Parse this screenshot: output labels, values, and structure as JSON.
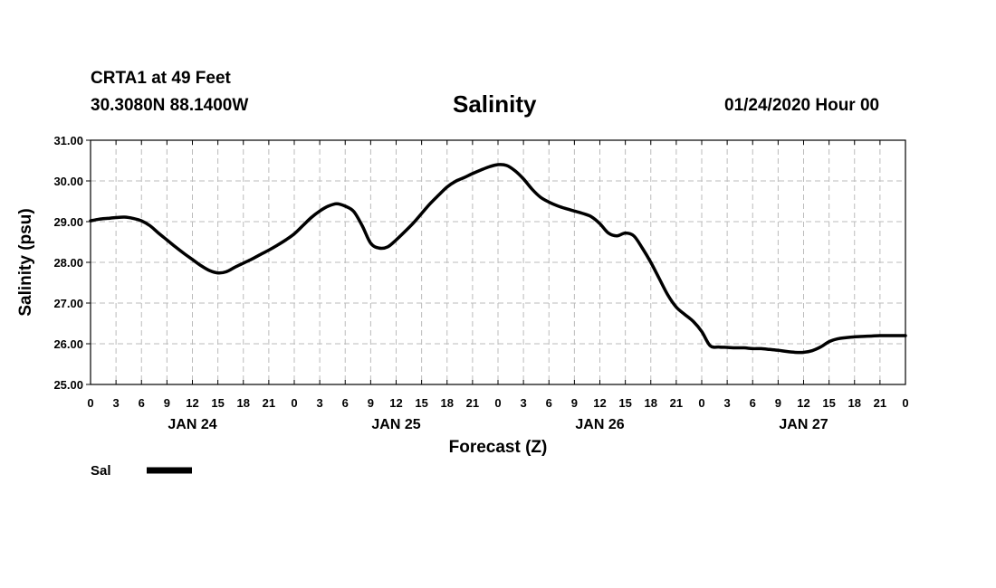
{
  "header": {
    "station": "CRTA1 at 49 Feet",
    "coords": "30.3080N 88.1400W",
    "datetime": "01/24/2020 Hour 00"
  },
  "colors": {
    "line": "#000000",
    "grid": "#bbbbbb",
    "frame": "#000000"
  },
  "chart_data": {
    "type": "line",
    "title": "Salinity",
    "xlabel": "Forecast (Z)",
    "ylabel": "Salinity (psu)",
    "xlim": [
      0,
      96
    ],
    "ylim": [
      25,
      31
    ],
    "x_unit": "forecast hours",
    "x_tick_step": 3,
    "x_tick_labels": [
      "0",
      "3",
      "6",
      "9",
      "12",
      "15",
      "18",
      "21",
      "0",
      "3",
      "6",
      "9",
      "12",
      "15",
      "18",
      "21",
      "0",
      "3",
      "6",
      "9",
      "12",
      "15",
      "18",
      "21",
      "0",
      "3",
      "6",
      "9",
      "12",
      "15",
      "18",
      "21",
      "0"
    ],
    "y_ticks": [
      25,
      26,
      27,
      28,
      29,
      30,
      31
    ],
    "y_tick_labels": [
      "25.00",
      "26.00",
      "27.00",
      "28.00",
      "29.00",
      "30.00",
      "31.00"
    ],
    "day_labels": [
      {
        "hour": 12,
        "label": "JAN 24"
      },
      {
        "hour": 36,
        "label": "JAN 25"
      },
      {
        "hour": 60,
        "label": "JAN 26"
      },
      {
        "hour": 84,
        "label": "JAN 27"
      }
    ],
    "grid": true,
    "legend_position": "bottom-left",
    "series": [
      {
        "name": "Sal",
        "x": [
          0,
          1,
          2,
          3,
          4,
          5,
          6,
          7,
          8,
          9,
          10,
          11,
          12,
          13,
          14,
          15,
          16,
          17,
          18,
          19,
          20,
          21,
          22,
          23,
          24,
          25,
          26,
          27,
          28,
          29,
          30,
          31,
          32,
          33,
          34,
          35,
          36,
          37,
          38,
          39,
          40,
          41,
          42,
          43,
          44,
          45,
          46,
          47,
          48,
          49,
          50,
          51,
          52,
          53,
          54,
          55,
          56,
          57,
          58,
          59,
          60,
          61,
          62,
          63,
          64,
          65,
          66,
          67,
          68,
          69,
          70,
          71,
          72,
          73,
          74,
          75,
          76,
          77,
          78,
          79,
          80,
          81,
          82,
          83,
          84,
          85,
          86,
          87,
          88,
          89,
          90,
          91,
          92,
          93,
          94,
          95,
          96
        ],
        "values": [
          29.02,
          29.06,
          29.08,
          29.1,
          29.11,
          29.08,
          29.02,
          28.9,
          28.72,
          28.55,
          28.38,
          28.22,
          28.07,
          27.92,
          27.8,
          27.74,
          27.77,
          27.88,
          27.98,
          28.08,
          28.19,
          28.3,
          28.42,
          28.55,
          28.7,
          28.9,
          29.1,
          29.26,
          29.38,
          29.44,
          29.38,
          29.25,
          28.9,
          28.47,
          28.35,
          28.38,
          28.55,
          28.75,
          28.96,
          29.2,
          29.44,
          29.65,
          29.85,
          29.99,
          30.08,
          30.18,
          30.27,
          30.35,
          30.4,
          30.38,
          30.25,
          30.05,
          29.8,
          29.6,
          29.48,
          29.39,
          29.32,
          29.26,
          29.2,
          29.12,
          28.95,
          28.72,
          28.65,
          28.72,
          28.65,
          28.35,
          28.0,
          27.6,
          27.2,
          26.9,
          26.72,
          26.55,
          26.3,
          25.95,
          25.92,
          25.91,
          25.9,
          25.9,
          25.88,
          25.88,
          25.86,
          25.84,
          25.81,
          25.79,
          25.79,
          25.83,
          25.92,
          26.05,
          26.12,
          26.15,
          26.17,
          26.18,
          26.19,
          26.2,
          26.2,
          26.2,
          26.2
        ]
      }
    ]
  }
}
